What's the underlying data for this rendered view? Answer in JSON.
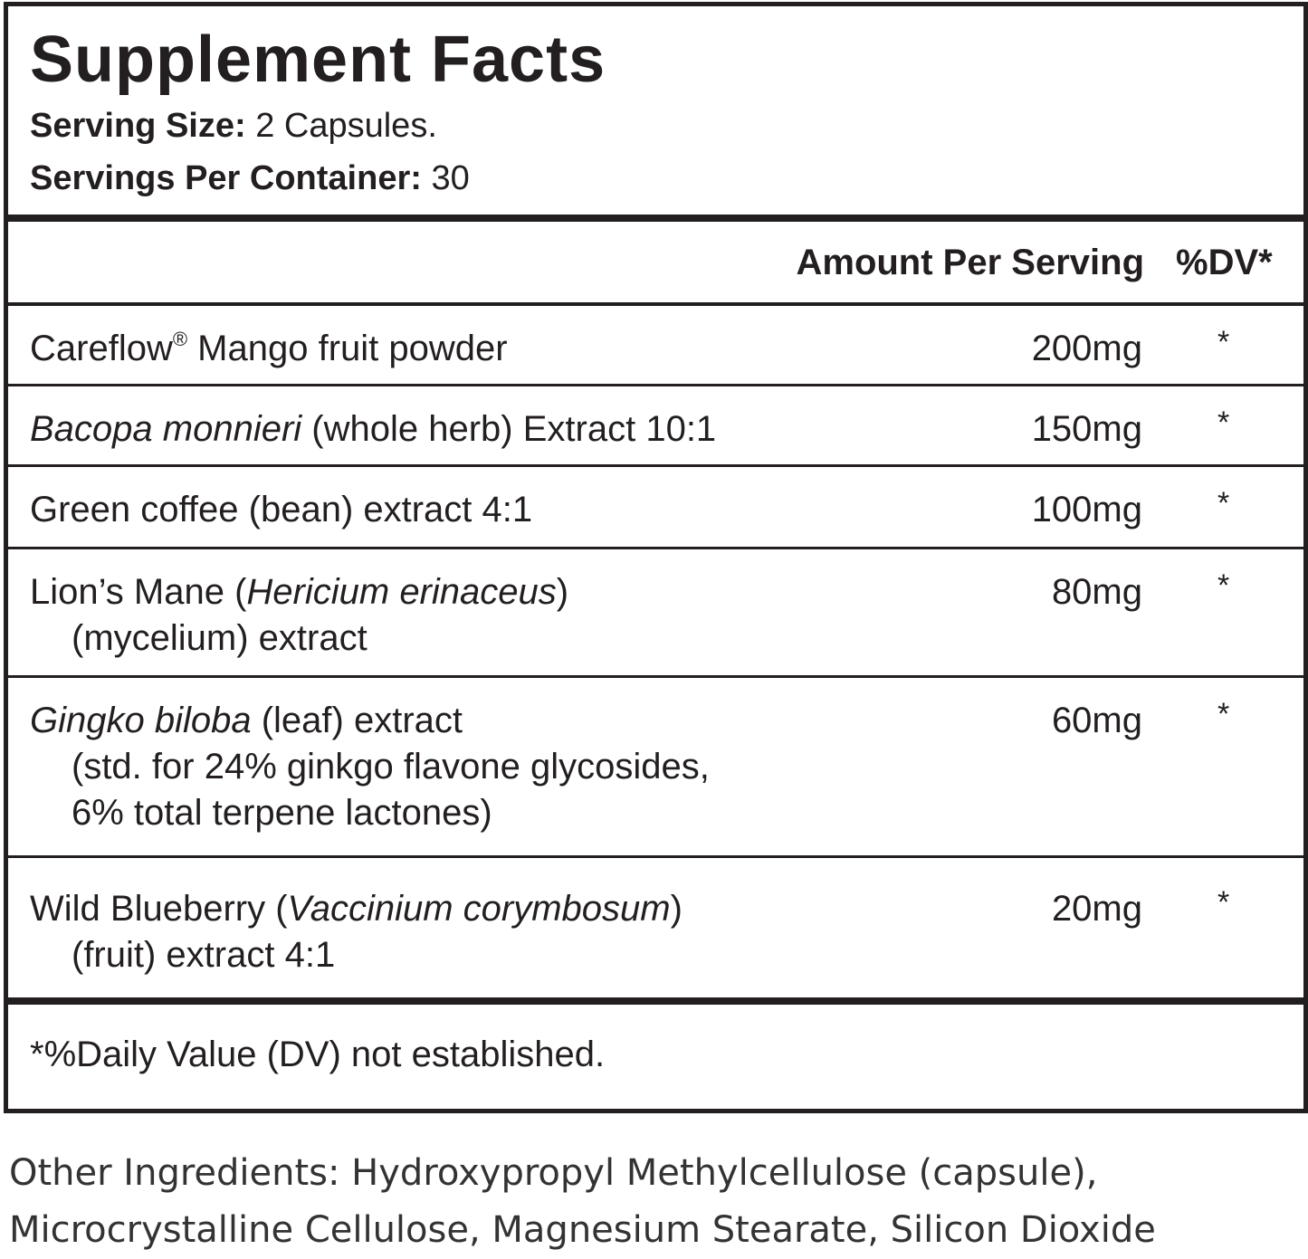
{
  "title": "Supplement Facts",
  "serving_size": {
    "label": "Serving Size:",
    "value": "2 Capsules."
  },
  "servings_per_container": {
    "label": "Servings Per Container:",
    "value": "30"
  },
  "columns": {
    "amount": "Amount Per Serving",
    "dv": "%DV*"
  },
  "rows": [
    {
      "name_a": "Careflow",
      "reg": "®",
      "name_b": " Mango fruit powder",
      "amount": "200mg",
      "dv": "*"
    },
    {
      "name_italic": "Bacopa monnieri",
      "name_b": " (whole herb) Extract 10:1",
      "amount": "150mg",
      "dv": "*"
    },
    {
      "name_a": "Green coffee (bean) extract 4:1",
      "amount": "100mg",
      "dv": "*"
    },
    {
      "name_a": "Lion’s Mane (",
      "name_italic": "Hericium erinaceus",
      "name_b": ")",
      "line2": "(mycelium) extract",
      "amount": "80mg",
      "dv": "*"
    },
    {
      "name_italic": "Gingko biloba",
      "name_b": " (leaf) extract",
      "line2": "(std. for 24% ginkgo flavone glycosides,",
      "line3": "6% total terpene lactones)",
      "amount": "60mg",
      "dv": "*"
    },
    {
      "name_a": "Wild Blueberry (",
      "name_italic": "Vaccinium corymbosum",
      "name_b": ")",
      "line2": "(fruit) extract 4:1",
      "amount": "20mg",
      "dv": "*"
    }
  ],
  "footnote": "*%Daily Value (DV) not established.",
  "other_ingredients": {
    "line1": "Other Ingredients: Hydroxypropyl Methylcellulose (capsule),",
    "line2": "Microcrystalline Cellulose, Magnesium Stearate, Silicon Dioxide"
  }
}
